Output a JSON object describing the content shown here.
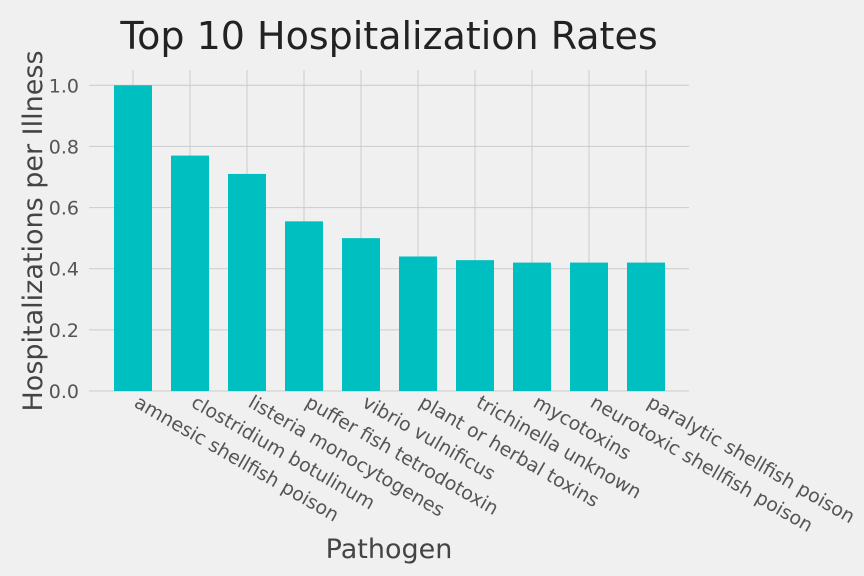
{
  "chart_data": {
    "type": "bar",
    "title": "Top 10 Hospitalization Rates",
    "xlabel": "Pathogen",
    "ylabel": "Hospitalizations per Illness",
    "categories": [
      "amnesic shellfish poison",
      "clostridium botulinum",
      "listeria monocytogenes",
      "puffer fish tetrodotoxin",
      "vibrio vulnificus",
      "plant or herbal toxins",
      "trichinella unknown",
      "mycotoxins",
      "neurotoxic shellfish poison",
      "paralytic shellfish poison"
    ],
    "values": [
      1.0,
      0.77,
      0.71,
      0.555,
      0.5,
      0.44,
      0.428,
      0.42,
      0.42,
      0.42
    ],
    "ylim": [
      0,
      1.05
    ],
    "yticks": [
      0.0,
      0.2,
      0.4,
      0.6,
      0.8,
      1.0
    ],
    "grid": true,
    "legend": "none",
    "colors": {
      "bar": "#00bfc0",
      "background": "#f0f0f0",
      "grid": "#cbcbcb"
    }
  }
}
